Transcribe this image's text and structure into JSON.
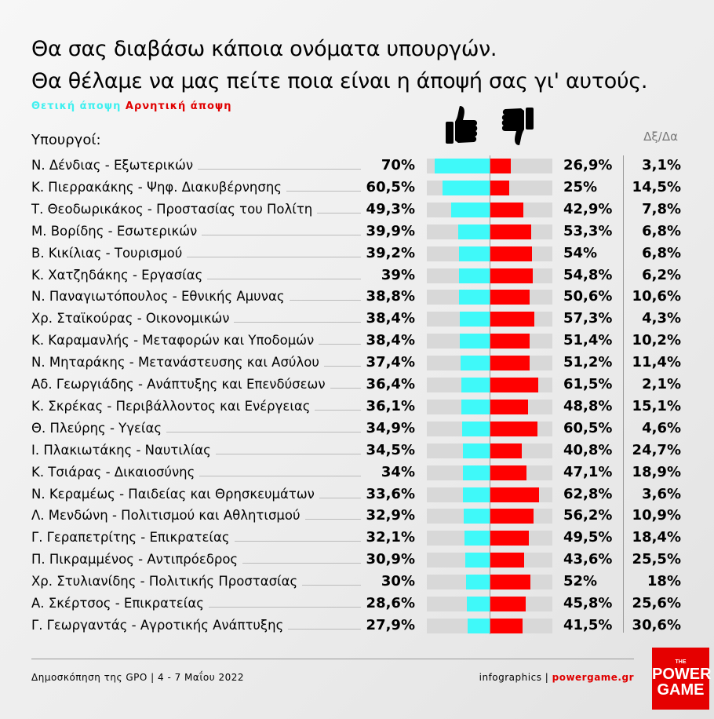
{
  "title_line1": "Θα σας διαβάσω κάποια ονόματα υπουργών.",
  "title_line2": "Θα θέλαμε να μας πείτε ποια είναι η άποψή σας γι' αυτούς.",
  "legend": {
    "positive": "Θετική άποψη",
    "negative": "Αρνητική άποψη"
  },
  "colors": {
    "positive": "#3ff9f9",
    "negative": "#ff0000",
    "track": "#d8d8d8"
  },
  "icons": {
    "positive": "thumbs-up-icon",
    "negative": "thumbs-down-icon"
  },
  "chart_data": {
    "type": "bar",
    "orientation": "horizontal-diverging",
    "row_header": "Υπουργοί:",
    "dk_header": "Δξ/Δα",
    "categories": [
      "Ν. Δένδιας - Εξωτερικών",
      "Κ. Πιερρακάκης - Ψηφ. Διακυβέρνησης",
      "Τ. Θεοδωρικάκος - Προστασίας του Πολίτη",
      "Μ. Βορίδης - Εσωτερικών",
      "Β. Κικίλιας - Τουρισμού",
      "Κ. Χατζηδάκης - Εργασίας",
      "Ν. Παναγιωτόπουλος - Εθνικής Αμυνας",
      "Χρ. Σταϊκούρας - Οικονομικών",
      "Κ. Καραμανλής - Μεταφορών και Υποδομών",
      "Ν. Μηταράκης - Μετανάστευσης και Ασύλου",
      "Αδ. Γεωργιάδης - Ανάπτυξης και Επενδύσεων",
      "Κ. Σκρέκας - Περιβάλλοντος και Ενέργειας",
      "Θ. Πλεύρης - Υγείας",
      "Ι. Πλακιωτάκης - Ναυτιλίας",
      "Κ. Τσιάρας - Δικαιοσύνης",
      "Ν. Κεραμέως - Παιδείας και Θρησκευμάτων",
      "Λ. Μενδώνη - Πολιτισμού και Αθλητισμού",
      "Γ. Γεραπετρίτης - Επικρατείας",
      "Π. Πικραμμένος - Αντιπρόεδρος",
      "Χρ. Στυλιανίδης - Πολιτικής Προστασίας",
      "Α. Σκέρτσος - Επικρατείας",
      "Γ. Γεωργαντάς - Αγροτικής Ανάπτυξης"
    ],
    "series": [
      {
        "name": "Θετική άποψη",
        "values": [
          70,
          60.5,
          49.3,
          39.9,
          39.2,
          39,
          38.8,
          38.4,
          38.4,
          37.4,
          36.4,
          36.1,
          34.9,
          34.5,
          34,
          33.6,
          32.9,
          32.1,
          30.9,
          30,
          28.6,
          27.9
        ],
        "labels": [
          "70%",
          "60,5%",
          "49,3%",
          "39,9%",
          "39,2%",
          "39%",
          "38,8%",
          "38,4%",
          "38,4%",
          "37,4%",
          "36,4%",
          "36,1%",
          "34,9%",
          "34,5%",
          "34%",
          "33,6%",
          "32,9%",
          "32,1%",
          "30,9%",
          "30%",
          "28,6%",
          "27,9%"
        ]
      },
      {
        "name": "Αρνητική άποψη",
        "values": [
          26.9,
          25,
          42.9,
          53.3,
          54,
          54.8,
          50.6,
          57.3,
          51.4,
          51.2,
          61.5,
          48.8,
          60.5,
          40.8,
          47.1,
          62.8,
          56.2,
          49.5,
          43.6,
          52,
          45.8,
          41.5
        ],
        "labels": [
          "26,9%",
          "25%",
          "42,9%",
          "53,3%",
          "54%",
          "54,8%",
          "50,6%",
          "57,3%",
          "51,4%",
          "51,2%",
          "61,5%",
          "48,8%",
          "60,5%",
          "40,8%",
          "47,1%",
          "62,8%",
          "56,2%",
          "49,5%",
          "43,6%",
          "52%",
          "45,8%",
          "41,5%"
        ]
      },
      {
        "name": "Δξ/Δα",
        "values": [
          3.1,
          14.5,
          7.8,
          6.8,
          6.8,
          6.2,
          10.6,
          4.3,
          10.2,
          11.4,
          2.1,
          15.1,
          4.6,
          24.7,
          18.9,
          3.6,
          10.9,
          18.4,
          25.5,
          18,
          25.6,
          30.6
        ],
        "labels": [
          "3,1%",
          "14,5%",
          "7,8%",
          "6,8%",
          "6,8%",
          "6,2%",
          "10,6%",
          "4,3%",
          "10,2%",
          "11,4%",
          "2,1%",
          "15,1%",
          "4,6%",
          "24,7%",
          "18,9%",
          "3,6%",
          "10,9%",
          "18,4%",
          "25,5%",
          "18%",
          "25,6%",
          "30,6%"
        ]
      }
    ],
    "xlim": [
      -80,
      80
    ]
  },
  "footer": {
    "source": "Δημοσκόπηση της GPO | 4 - 7 Μαΐου 2022",
    "credit": "infographics | ",
    "site": "powergame.gr"
  },
  "logo": {
    "small": "THE",
    "line1": "POWER",
    "line2": "GAME"
  }
}
